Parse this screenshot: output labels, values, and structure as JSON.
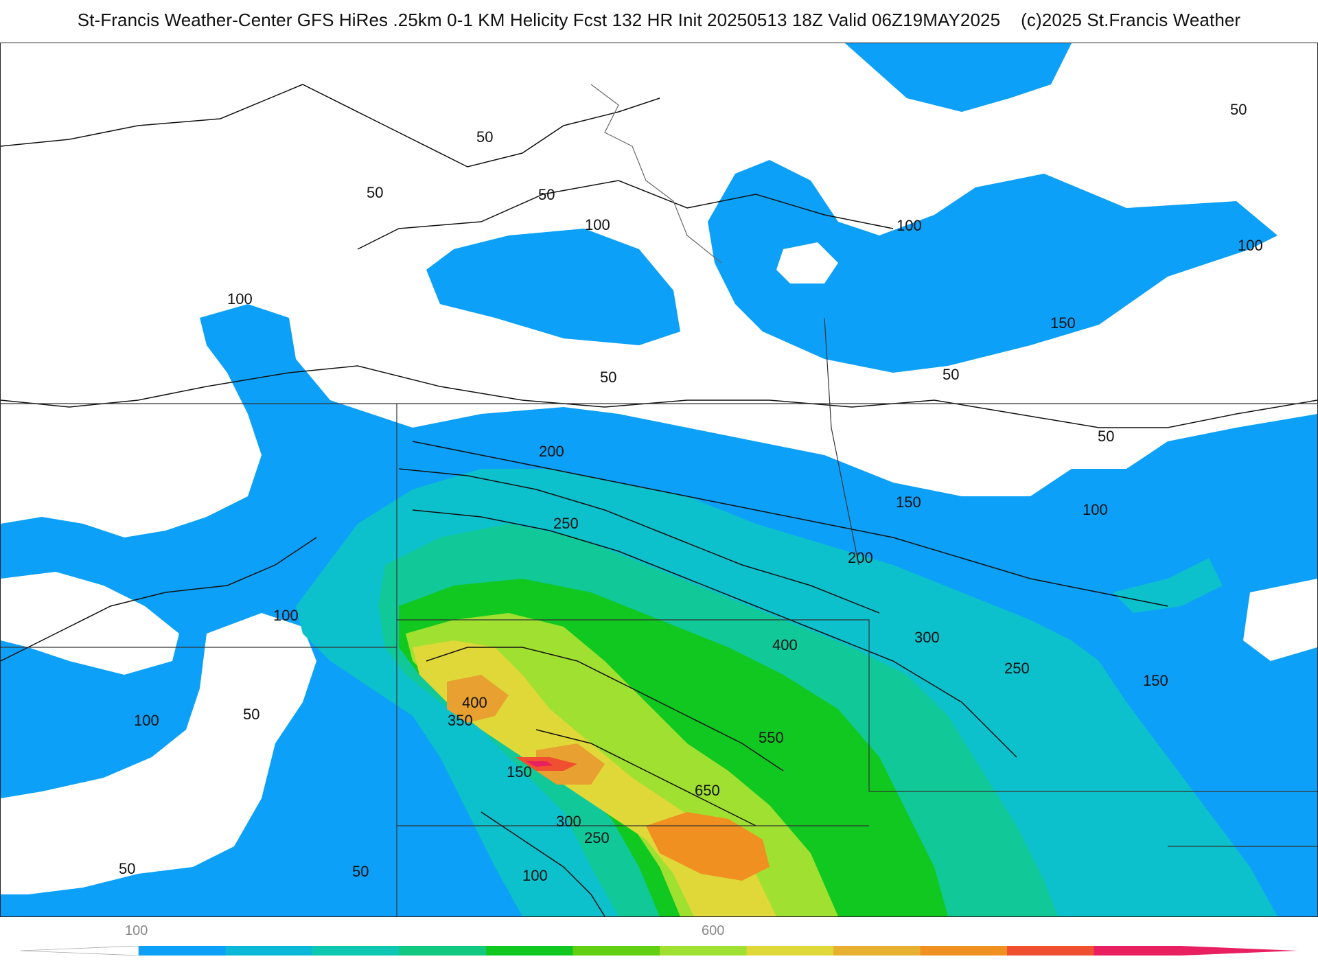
{
  "header": {
    "title": "St-Francis Weather-Center GFS HiRes .25km 0-1 KM Helicity Fcst 132 HR Init 20250513 18Z  Valid 06Z19MAY2025",
    "copyright": "(c)2025 St.Francis Weather"
  },
  "map": {
    "contour_labels": [
      {
        "text": "50"
      },
      {
        "text": "50"
      },
      {
        "text": "50"
      },
      {
        "text": "50"
      },
      {
        "text": "50"
      },
      {
        "text": "50"
      },
      {
        "text": "50"
      },
      {
        "text": "50"
      },
      {
        "text": "50"
      },
      {
        "text": "50"
      },
      {
        "text": "100"
      },
      {
        "text": "100"
      },
      {
        "text": "100"
      },
      {
        "text": "100"
      },
      {
        "text": "100"
      },
      {
        "text": "100"
      },
      {
        "text": "100"
      },
      {
        "text": "100"
      },
      {
        "text": "150"
      },
      {
        "text": "150"
      },
      {
        "text": "150"
      },
      {
        "text": "150"
      },
      {
        "text": "200"
      },
      {
        "text": "200"
      },
      {
        "text": "250"
      },
      {
        "text": "250"
      },
      {
        "text": "250"
      },
      {
        "text": "300"
      },
      {
        "text": "300"
      },
      {
        "text": "350"
      },
      {
        "text": "400"
      },
      {
        "text": "400"
      },
      {
        "text": "550"
      },
      {
        "text": "650"
      }
    ]
  },
  "colorbar": {
    "tick_labels": [
      "100",
      "600"
    ],
    "colors": [
      "#0ca0f8",
      "#0cb8d8",
      "#0cc8b0",
      "#10c880",
      "#10c820",
      "#60d010",
      "#a0e030",
      "#e0d838",
      "#e8b030",
      "#f09020",
      "#f05030",
      "#e82060"
    ]
  }
}
